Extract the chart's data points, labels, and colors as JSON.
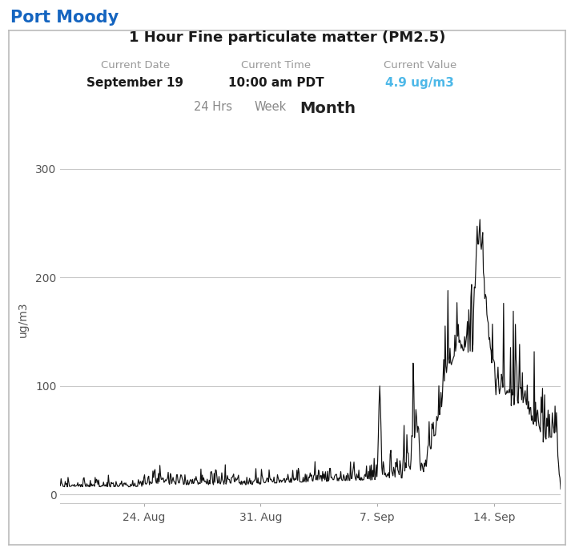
{
  "title": "1 Hour Fine particulate matter (PM2.5)",
  "header_title": "Port Moody",
  "label_date_header": "Current Date",
  "label_time_header": "Current Time",
  "label_value_header": "Current Value",
  "current_date": "September 19",
  "current_time": "10:00 am PDT",
  "current_value": "4.9 ug/m3",
  "tab_24hrs": "24 Hrs",
  "tab_week": "Week",
  "tab_month": "Month",
  "ylabel": "ug/m3",
  "yticks": [
    0,
    100,
    200,
    300
  ],
  "xtick_labels": [
    "24. Aug",
    "31. Aug",
    "7. Sep",
    "14. Sep"
  ],
  "ylim": [
    -8,
    330
  ],
  "xlim": [
    0,
    30
  ],
  "xtick_positions": [
    5,
    12,
    19,
    26
  ],
  "header_color": "#1565C0",
  "value_color": "#4db8e8",
  "line_color": "#111111",
  "grid_color": "#c8c8c8",
  "tab_normal_color": "#888888",
  "tab_selected_color": "#222222",
  "background_color": "#ffffff",
  "border_color": "#bbbbbb",
  "label_color": "#999999",
  "axis_label_color": "#555555"
}
